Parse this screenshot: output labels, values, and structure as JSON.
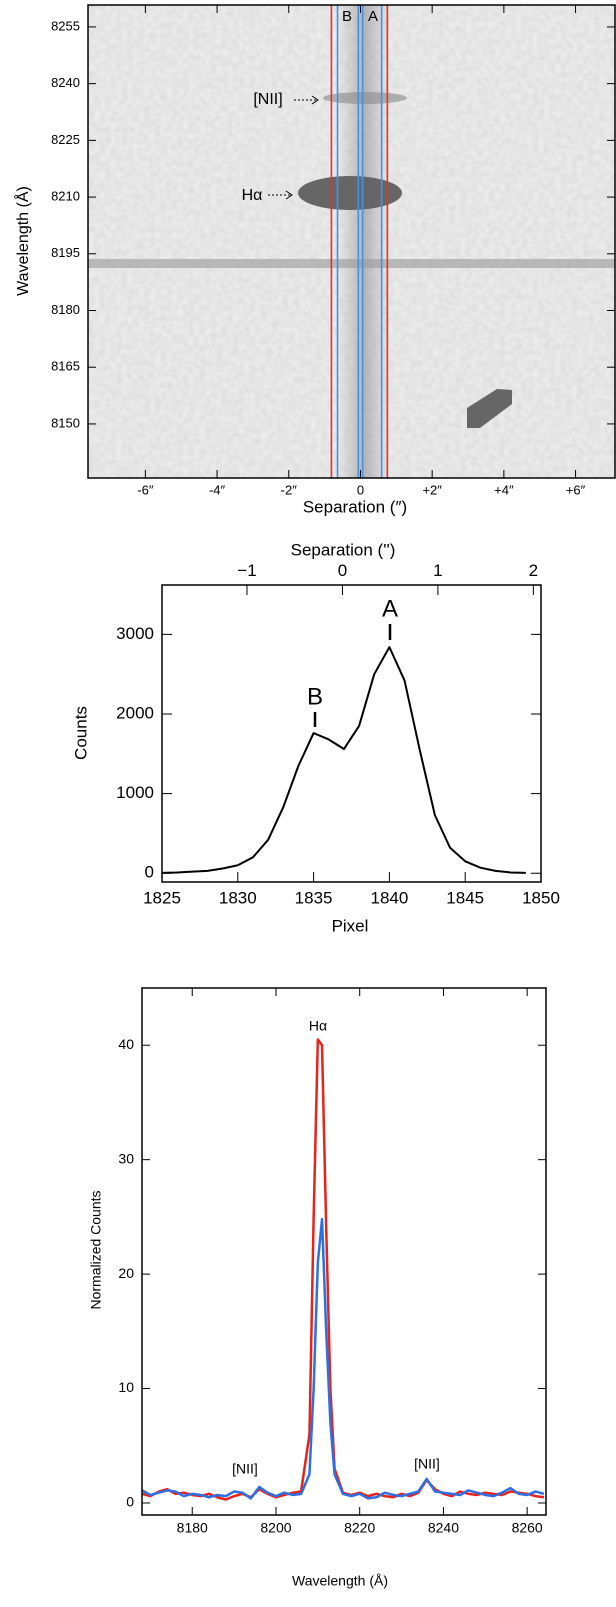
{
  "chart_data": [
    {
      "type": "image",
      "xlabel": "Separation (″)",
      "ylabel": "Wavelength (Å)",
      "xlim": [
        -7.6,
        7.1
      ],
      "ylim": [
        8135.7,
        8260.8
      ],
      "xticks": [
        {
          "value": -6,
          "label": "-6″"
        },
        {
          "value": -4,
          "label": "-4″"
        },
        {
          "value": -2,
          "label": "-2″"
        },
        0,
        {
          "value": 2,
          "label": "+2″"
        },
        {
          "value": 4,
          "label": "+4″"
        },
        {
          "value": 6,
          "label": "+6″"
        }
      ],
      "yticks": [
        8150,
        8165,
        8180,
        8195,
        8210,
        8225,
        8240,
        8255
      ],
      "vlines": [
        {
          "x": -0.81,
          "color": "#e8312a"
        },
        {
          "x": -0.64,
          "color": "#4a90e2"
        },
        {
          "x": -0.06,
          "color": "#4a90e2"
        },
        {
          "x": 0.06,
          "color": "#4a90e2"
        },
        {
          "x": 0.59,
          "color": "#4a90e2"
        },
        {
          "x": 0.75,
          "color": "#e8312a"
        }
      ],
      "aperture_labels": [
        "B",
        "A"
      ],
      "annotations": [
        "[NII]",
        "Hα"
      ]
    },
    {
      "type": "line",
      "xlabel": "Pixel",
      "ylabel": "Counts",
      "x2label": "Separation ('')",
      "x": [
        1825,
        1826,
        1827,
        1828,
        1829,
        1830,
        1831,
        1832,
        1833,
        1834,
        1835,
        1836,
        1837,
        1838,
        1839,
        1840,
        1841,
        1842,
        1843,
        1844,
        1845,
        1846,
        1847,
        1848,
        1849
      ],
      "series": [
        {
          "color": "#000000",
          "values": [
            5,
            10,
            20,
            30,
            60,
            100,
            200,
            420,
            830,
            1350,
            1760,
            1680,
            1560,
            1850,
            2500,
            2840,
            2420,
            1550,
            730,
            320,
            150,
            70,
            30,
            10,
            5
          ]
        }
      ],
      "xlim": [
        1825,
        1850
      ],
      "xticks": [
        1825,
        1830,
        1835,
        1840,
        1845,
        1850
      ],
      "ylim": [
        -110,
        3620
      ],
      "yticks": [
        0,
        1000,
        2000,
        3000
      ],
      "x2lim": [
        -1.89,
        2.08
      ],
      "x2ticks": [
        {
          "value": -1,
          "label": "−1"
        },
        0,
        1,
        2
      ],
      "peak_labels": [
        "B",
        "A"
      ]
    },
    {
      "type": "line",
      "xlabel": "Wavelength (Å)",
      "ylabel": "Normalized Counts",
      "x": [
        8168,
        8170,
        8172,
        8174,
        8176,
        8178,
        8180,
        8182,
        8184,
        8186,
        8188,
        8190,
        8192,
        8194,
        8196,
        8198,
        8200,
        8202,
        8204,
        8206,
        8208,
        8209,
        8210,
        8211,
        8212,
        8213,
        8214,
        8216,
        8218,
        8220,
        8222,
        8224,
        8226,
        8228,
        8230,
        8232,
        8234,
        8236,
        8238,
        8240,
        8242,
        8244,
        8246,
        8248,
        8250,
        8252,
        8254,
        8256,
        8258,
        8260,
        8262,
        8264
      ],
      "series": [
        {
          "color": "#e8231c",
          "values": [
            0.8,
            0.6,
            1.0,
            1.2,
            0.8,
            0.9,
            0.7,
            0.6,
            0.8,
            0.5,
            0.3,
            0.6,
            0.8,
            0.5,
            1.2,
            0.8,
            0.5,
            0.7,
            0.9,
            1.0,
            6,
            25,
            40.5,
            40,
            24,
            10,
            3,
            0.9,
            0.7,
            0.9,
            0.6,
            0.8,
            0.6,
            0.5,
            0.8,
            0.6,
            0.9,
            2.0,
            1.2,
            0.8,
            0.6,
            1.0,
            0.8,
            0.7,
            0.9,
            0.8,
            0.7,
            1.0,
            0.9,
            0.8,
            0.6,
            0.5
          ]
        },
        {
          "color": "#2f6fe0",
          "values": [
            1.1,
            0.7,
            0.9,
            1.1,
            1.0,
            0.6,
            0.8,
            0.7,
            0.5,
            0.7,
            0.6,
            1.0,
            0.9,
            0.4,
            1.4,
            0.9,
            0.6,
            0.9,
            0.7,
            0.8,
            2.5,
            10,
            21,
            24.8,
            15,
            7,
            2.5,
            0.8,
            0.6,
            0.8,
            0.4,
            0.5,
            0.9,
            0.7,
            0.6,
            0.8,
            1.0,
            2.1,
            1.0,
            0.9,
            0.8,
            0.7,
            1.1,
            0.9,
            0.7,
            0.6,
            0.9,
            1.3,
            0.8,
            0.7,
            1.0,
            0.8
          ]
        }
      ],
      "xlim": [
        8168,
        8264.5
      ],
      "xticks": [
        8180,
        8200,
        8220,
        8240,
        8260
      ],
      "ylim": [
        -1.05,
        45
      ],
      "yticks": [
        0,
        10,
        20,
        30,
        40
      ],
      "annotations": [
        "Hα",
        "[NII]",
        "[NII]"
      ]
    }
  ]
}
